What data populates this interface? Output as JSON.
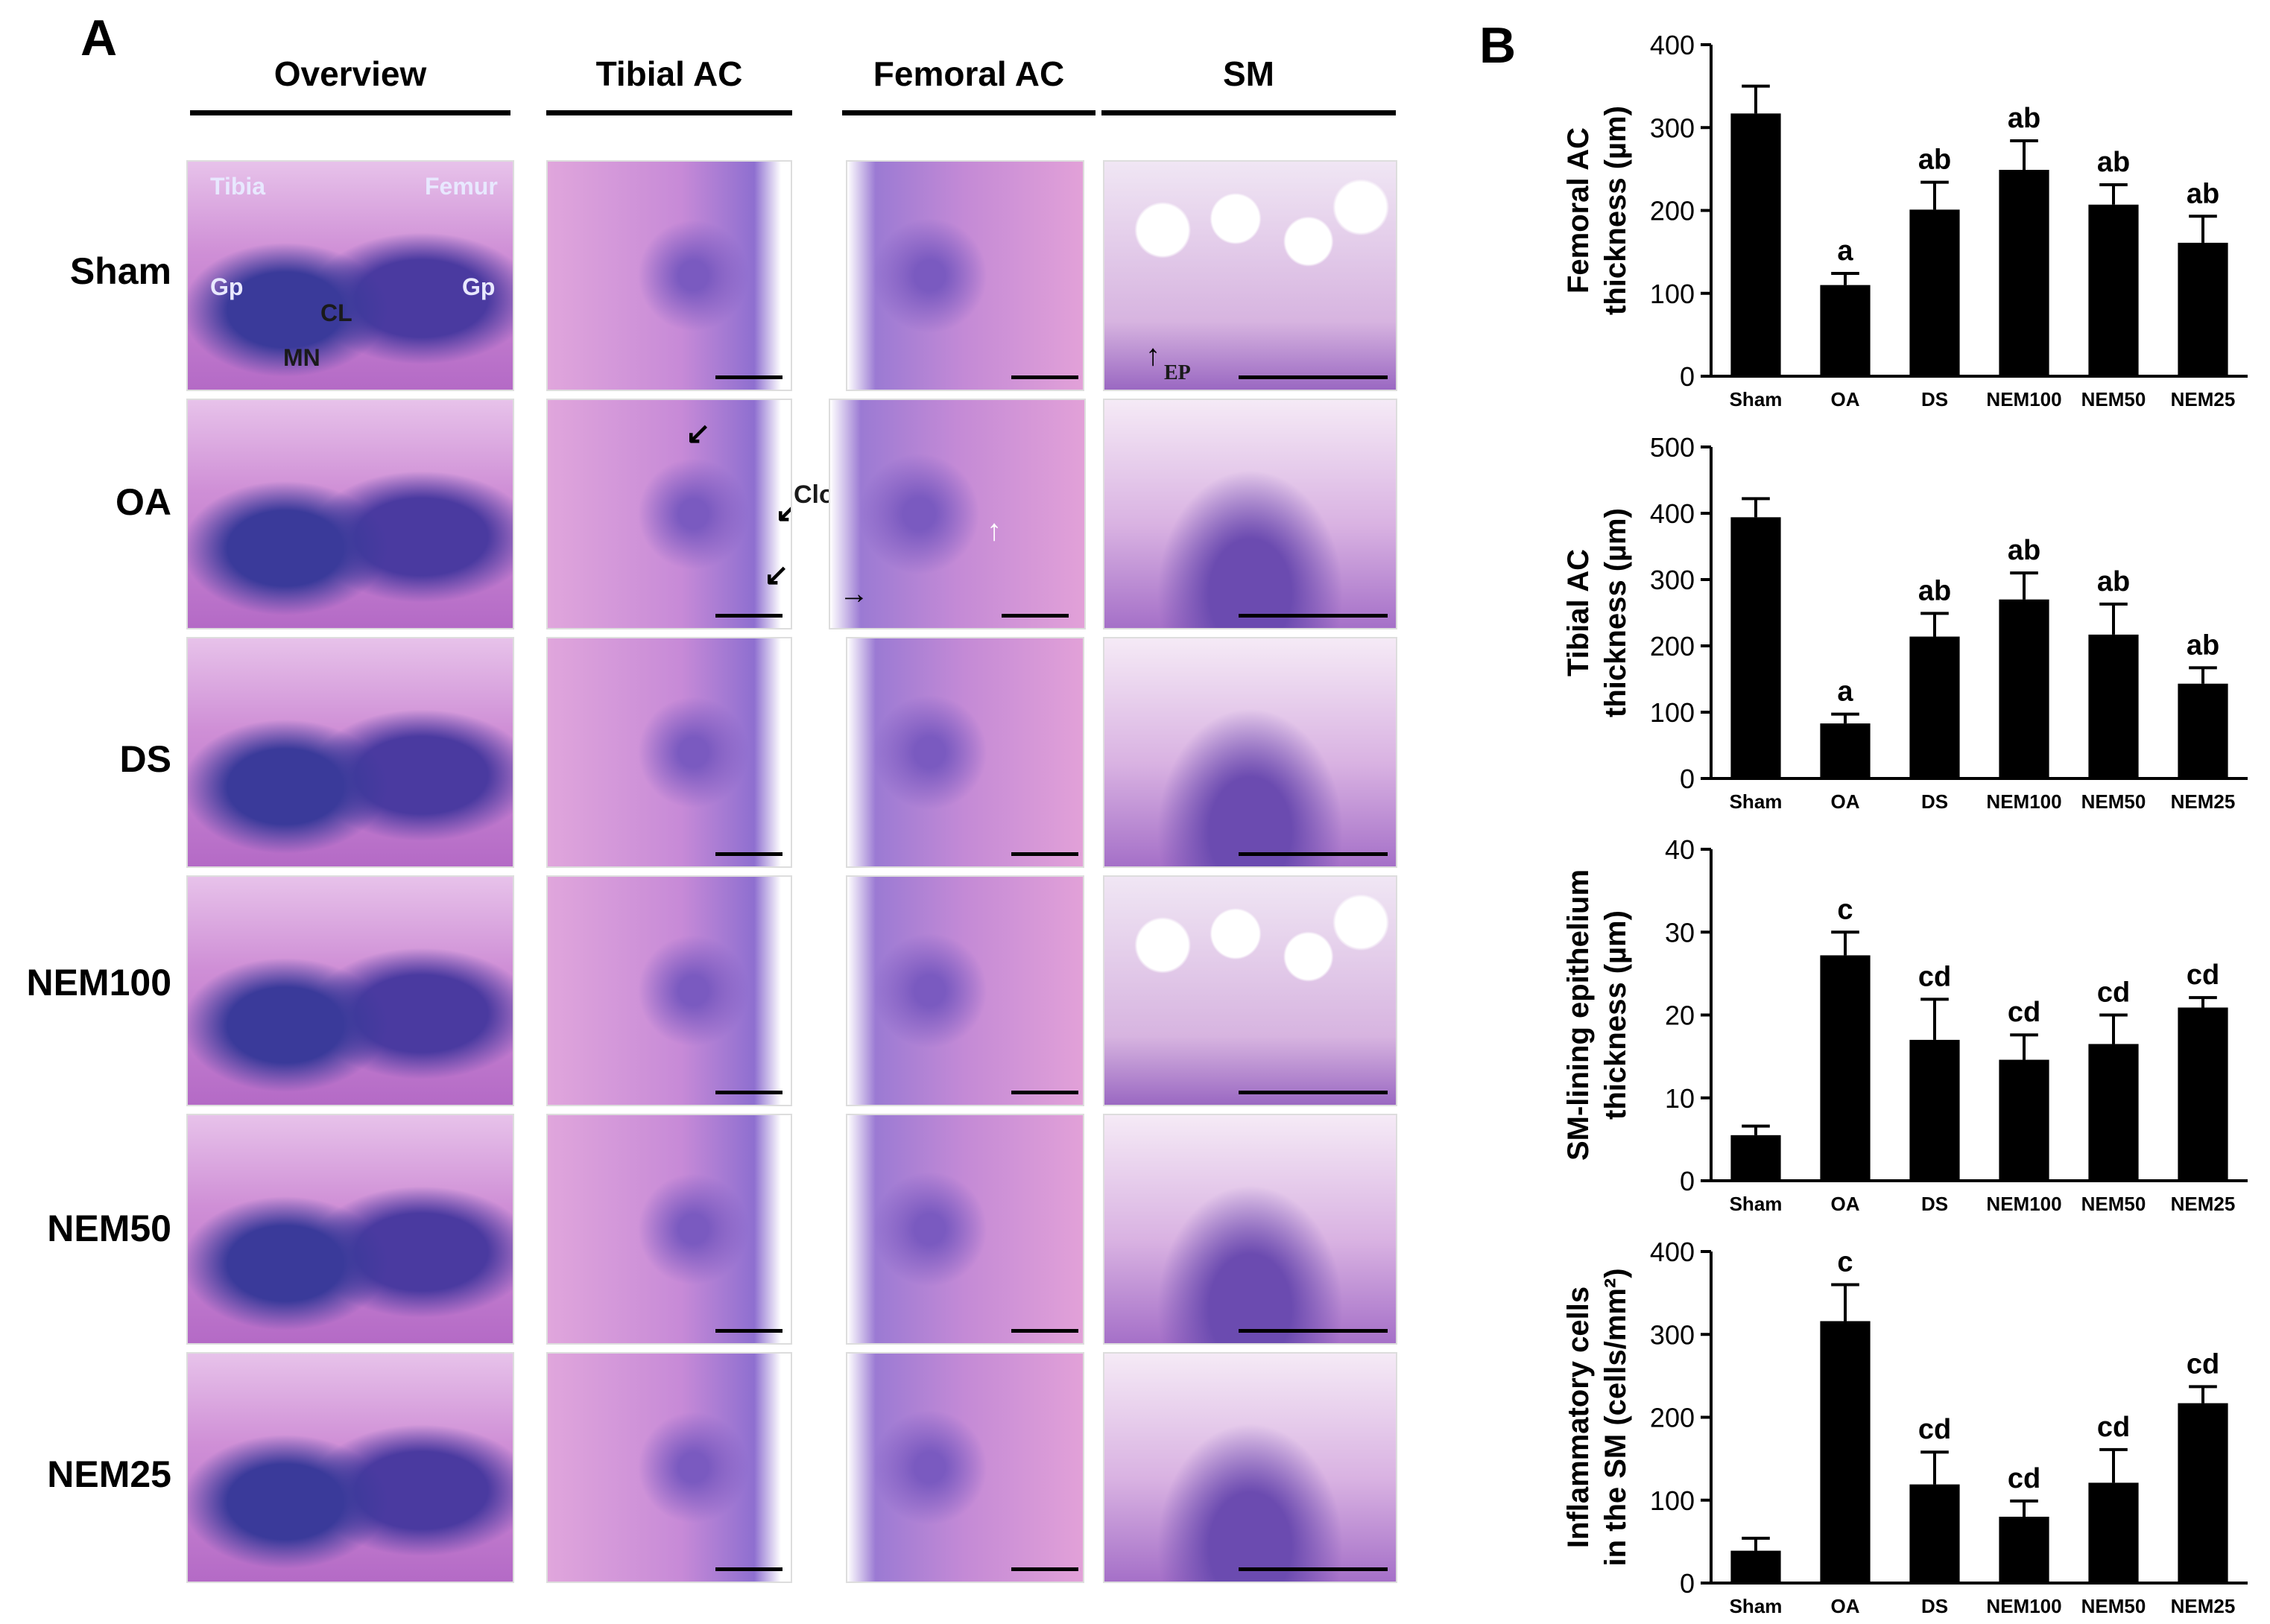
{
  "panel_a": {
    "letter": "A",
    "columns": [
      "Overview",
      "Tibial AC",
      "Femoral AC",
      "SM"
    ],
    "rows": [
      "Sham",
      "OA",
      "DS",
      "NEM100",
      "NEM50",
      "NEM25"
    ],
    "annotations": {
      "tibia": "Tibia",
      "femur": "Femur",
      "gp_left": "Gp",
      "gp_right": "Gp",
      "cl": "CL",
      "mn": "MN",
      "clones": "Clones",
      "ep": "EP"
    }
  },
  "panel_b": {
    "letter": "B"
  },
  "chart_data": [
    {
      "type": "bar",
      "ylabel": "Femoral AC thickness (µm)",
      "categories": [
        "Sham",
        "OA",
        "DS",
        "NEM100",
        "NEM50",
        "NEM25"
      ],
      "values": [
        317,
        110,
        201,
        249,
        207,
        161
      ],
      "errors": [
        33,
        14,
        33,
        35,
        24,
        32
      ],
      "annotations": [
        "",
        "a",
        "ab",
        "ab",
        "ab",
        "ab"
      ],
      "ylim": [
        0,
        400
      ],
      "yticks": [
        0,
        100,
        200,
        300,
        400
      ],
      "color": "#000000"
    },
    {
      "type": "bar",
      "ylabel": "Tibial AC thickness (µm)",
      "categories": [
        "Sham",
        "OA",
        "DS",
        "NEM100",
        "NEM50",
        "NEM25"
      ],
      "values": [
        394,
        83,
        214,
        270,
        217,
        143
      ],
      "errors": [
        28,
        14,
        35,
        40,
        46,
        24
      ],
      "annotations": [
        "",
        "a",
        "ab",
        "ab",
        "ab",
        "ab"
      ],
      "ylim": [
        0,
        500
      ],
      "yticks": [
        0,
        100,
        200,
        300,
        400,
        500
      ],
      "color": "#000000"
    },
    {
      "type": "bar",
      "ylabel": "SM-lining epithelium thickness (µm)",
      "categories": [
        "Sham",
        "OA",
        "DS",
        "NEM100",
        "NEM50",
        "NEM25"
      ],
      "values": [
        5.5,
        27.2,
        17,
        14.6,
        16.5,
        20.9
      ],
      "errors": [
        1.1,
        2.8,
        4.9,
        3,
        3.5,
        1.2
      ],
      "annotations": [
        "",
        "c",
        "cd",
        "cd",
        "cd",
        "cd"
      ],
      "ylim": [
        0,
        40
      ],
      "yticks": [
        0,
        10,
        20,
        30,
        40
      ],
      "color": "#000000"
    },
    {
      "type": "bar",
      "ylabel": "Inflammatory cells in the SM (cells/mm²)",
      "categories": [
        "Sham",
        "OA",
        "DS",
        "NEM100",
        "NEM50",
        "NEM25"
      ],
      "values": [
        39,
        316,
        119,
        80,
        121,
        217
      ],
      "errors": [
        15,
        44,
        39,
        19,
        40,
        20
      ],
      "annotations": [
        "",
        "c",
        "cd",
        "cd",
        "cd",
        "cd"
      ],
      "ylim": [
        0,
        400
      ],
      "yticks": [
        0,
        100,
        200,
        300,
        400
      ],
      "color": "#000000"
    }
  ]
}
